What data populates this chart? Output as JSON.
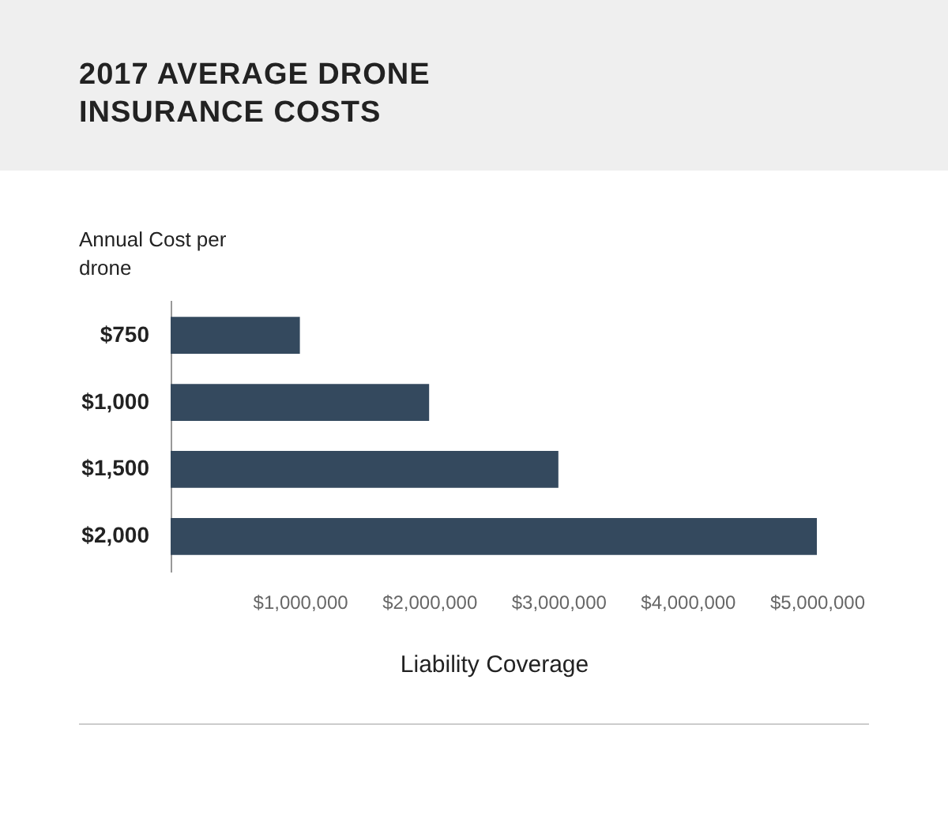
{
  "chart_data": {
    "type": "bar",
    "orientation": "horizontal",
    "title": "2017 AVERAGE DRONE INSURANCE COSTS",
    "ylabel": "Annual Cost per drone",
    "xlabel": "Liability Coverage",
    "categories": [
      "$750",
      "$1,000",
      "$1,500",
      "$2,000"
    ],
    "values": [
      1000000,
      2000000,
      3000000,
      5000000
    ],
    "color": "#34495e",
    "xlim": [
      0,
      5000000
    ],
    "xticks": [
      {
        "value": 1000000,
        "label": "$1,000,000"
      },
      {
        "value": 2000000,
        "label": "$2,000,000"
      },
      {
        "value": 3000000,
        "label": "$3,000,000"
      },
      {
        "value": 4000000,
        "label": "$4,000,000"
      },
      {
        "value": 5000000,
        "label": "$5,000,000"
      }
    ],
    "grid": false
  }
}
